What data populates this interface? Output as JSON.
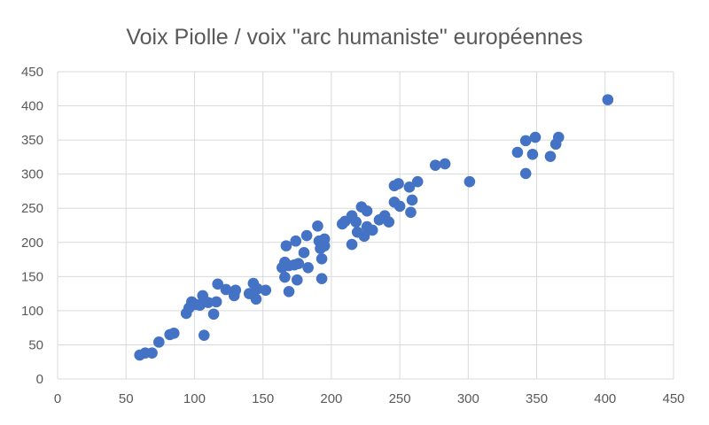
{
  "chart_data": {
    "type": "scatter",
    "title": "Voix Piolle / voix \"arc humaniste\" européennes",
    "xlabel": "",
    "ylabel": "",
    "xlim": [
      0,
      450
    ],
    "ylim": [
      0,
      450
    ],
    "x_ticks": [
      "0",
      "50",
      "100",
      "150",
      "200",
      "250",
      "300",
      "350",
      "400",
      "450"
    ],
    "y_ticks": [
      "0",
      "50",
      "100",
      "150",
      "200",
      "250",
      "300",
      "350",
      "400",
      "450"
    ],
    "grid": true,
    "legend": "none",
    "marker_color": "#4472c4",
    "points": [
      [
        60,
        35
      ],
      [
        64,
        38
      ],
      [
        69,
        38
      ],
      [
        74,
        54
      ],
      [
        82,
        65
      ],
      [
        85,
        67
      ],
      [
        107,
        64
      ],
      [
        94,
        96
      ],
      [
        96,
        104
      ],
      [
        98,
        113
      ],
      [
        101,
        109
      ],
      [
        104,
        108
      ],
      [
        106,
        122
      ],
      [
        110,
        112
      ],
      [
        114,
        95
      ],
      [
        116,
        113
      ],
      [
        117,
        139
      ],
      [
        123,
        131
      ],
      [
        129,
        122
      ],
      [
        130,
        130
      ],
      [
        140,
        125
      ],
      [
        143,
        140
      ],
      [
        145,
        117
      ],
      [
        146,
        132
      ],
      [
        152,
        130
      ],
      [
        164,
        163
      ],
      [
        166,
        171
      ],
      [
        166,
        149
      ],
      [
        167,
        195
      ],
      [
        169,
        166
      ],
      [
        169,
        128
      ],
      [
        173,
        167
      ],
      [
        174,
        202
      ],
      [
        175,
        145
      ],
      [
        176,
        169
      ],
      [
        180,
        185
      ],
      [
        182,
        210
      ],
      [
        183,
        163
      ],
      [
        190,
        224
      ],
      [
        191,
        202
      ],
      [
        192,
        191
      ],
      [
        193,
        176
      ],
      [
        193,
        147
      ],
      [
        195,
        205
      ],
      [
        195,
        195
      ],
      [
        208,
        227
      ],
      [
        210,
        231
      ],
      [
        215,
        239
      ],
      [
        215,
        197
      ],
      [
        218,
        230
      ],
      [
        219,
        215
      ],
      [
        222,
        252
      ],
      [
        224,
        209
      ],
      [
        226,
        246
      ],
      [
        226,
        223
      ],
      [
        230,
        218
      ],
      [
        235,
        233
      ],
      [
        239,
        239
      ],
      [
        242,
        230
      ],
      [
        246,
        283
      ],
      [
        249,
        286
      ],
      [
        246,
        259
      ],
      [
        250,
        253
      ],
      [
        257,
        281
      ],
      [
        259,
        262
      ],
      [
        258,
        244
      ],
      [
        263,
        289
      ],
      [
        276,
        313
      ],
      [
        283,
        315
      ],
      [
        301,
        289
      ],
      [
        336,
        332
      ],
      [
        342,
        349
      ],
      [
        342,
        301
      ],
      [
        347,
        329
      ],
      [
        349,
        354
      ],
      [
        360,
        326
      ],
      [
        364,
        344
      ],
      [
        366,
        354
      ],
      [
        402,
        409
      ]
    ]
  }
}
